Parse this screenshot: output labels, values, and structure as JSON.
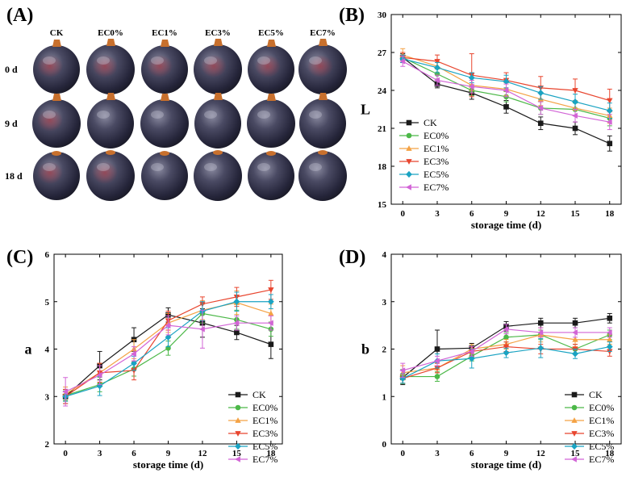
{
  "photo_panel": {
    "label": "(A)",
    "columns": [
      "CK",
      "EC0%",
      "EC1%",
      "EC3%",
      "EC5%",
      "EC7%"
    ],
    "rows": [
      "0 d",
      "9 d",
      "18 d"
    ]
  },
  "colors": {
    "CK": "#1a1a1a",
    "EC0%": "#4cb848",
    "EC1%": "#f4a244",
    "EC3%": "#e8452e",
    "EC5%": "#1aa3c2",
    "EC7%": "#d264d6"
  },
  "chart_data": [
    {
      "type": "line",
      "panel": "(B)",
      "xlabel": "storage time (d)",
      "ylabel": "L",
      "x": [
        0,
        3,
        6,
        9,
        12,
        15,
        18
      ],
      "xticks": [
        "0",
        "3",
        "6",
        "9",
        "12",
        "15",
        "18"
      ],
      "ylim": [
        15,
        30
      ],
      "yticks": [
        "15",
        "18",
        "21",
        "24",
        "27",
        "30"
      ],
      "legend_position": "lower-left",
      "series": [
        {
          "name": "CK",
          "values": [
            26.6,
            24.5,
            23.8,
            22.7,
            21.4,
            21.0,
            19.8
          ],
          "errors": [
            0.3,
            0.3,
            0.5,
            0.5,
            0.5,
            0.5,
            0.6
          ]
        },
        {
          "name": "EC0%",
          "values": [
            26.6,
            25.3,
            24.0,
            23.5,
            22.6,
            22.5,
            21.8
          ],
          "errors": [
            0.4,
            0.4,
            0.4,
            0.4,
            0.5,
            0.5,
            0.6
          ]
        },
        {
          "name": "EC1%",
          "values": [
            26.8,
            25.9,
            24.4,
            24.1,
            23.3,
            22.6,
            22.0
          ],
          "errors": [
            0.5,
            0.5,
            0.4,
            0.5,
            0.5,
            0.6,
            0.6
          ]
        },
        {
          "name": "EC3%",
          "values": [
            26.6,
            26.3,
            25.2,
            24.8,
            24.2,
            24.0,
            23.2
          ],
          "errors": [
            0.4,
            0.5,
            1.7,
            0.6,
            0.9,
            0.9,
            0.9
          ]
        },
        {
          "name": "EC5%",
          "values": [
            26.5,
            25.8,
            25.0,
            24.7,
            23.8,
            23.1,
            22.4
          ],
          "errors": [
            0.3,
            0.4,
            0.4,
            0.5,
            0.5,
            0.6,
            0.6
          ]
        },
        {
          "name": "EC7%",
          "values": [
            26.3,
            24.8,
            24.3,
            24.0,
            22.6,
            22.0,
            21.5
          ],
          "errors": [
            0.4,
            0.4,
            0.5,
            0.5,
            0.5,
            0.5,
            0.6
          ]
        }
      ]
    },
    {
      "type": "line",
      "panel": "(C)",
      "xlabel": "storage time (d)",
      "ylabel": "a",
      "x": [
        0,
        3,
        6,
        9,
        12,
        15,
        18
      ],
      "xticks": [
        "0",
        "3",
        "6",
        "9",
        "12",
        "15",
        "18"
      ],
      "ylim": [
        2,
        6
      ],
      "yticks": [
        "2",
        "3",
        "4",
        "5",
        "6"
      ],
      "legend_position": "lower-right",
      "series": [
        {
          "name": "CK",
          "values": [
            3.0,
            3.65,
            4.2,
            4.72,
            4.55,
            4.35,
            4.1
          ],
          "errors": [
            0.15,
            0.3,
            0.25,
            0.15,
            0.3,
            0.15,
            0.3
          ]
        },
        {
          "name": "EC0%",
          "values": [
            3.02,
            3.25,
            3.58,
            4.02,
            4.75,
            4.62,
            4.42
          ],
          "errors": [
            0.1,
            0.15,
            0.15,
            0.15,
            0.2,
            0.2,
            0.15
          ]
        },
        {
          "name": "EC1%",
          "values": [
            3.05,
            3.5,
            4.0,
            4.55,
            4.82,
            4.98,
            4.75
          ],
          "errors": [
            0.15,
            0.2,
            0.2,
            0.2,
            0.2,
            0.25,
            0.2
          ]
        },
        {
          "name": "EC3%",
          "values": [
            3.0,
            3.5,
            3.55,
            4.6,
            4.95,
            5.1,
            5.25
          ],
          "errors": [
            0.15,
            0.2,
            0.2,
            0.2,
            0.15,
            0.2,
            0.2
          ]
        },
        {
          "name": "EC5%",
          "values": [
            3.0,
            3.22,
            3.7,
            4.25,
            4.8,
            5.0,
            5.0
          ],
          "errors": [
            0.1,
            0.2,
            0.15,
            0.2,
            0.2,
            0.2,
            0.15
          ]
        },
        {
          "name": "EC7%",
          "values": [
            3.1,
            3.45,
            3.9,
            4.5,
            4.42,
            4.55,
            4.55
          ],
          "errors": [
            0.3,
            0.2,
            0.15,
            0.2,
            0.4,
            0.15,
            0.15
          ]
        }
      ]
    },
    {
      "type": "line",
      "panel": "(D)",
      "xlabel": "storage time (d)",
      "ylabel": "b",
      "x": [
        0,
        3,
        6,
        9,
        12,
        15,
        18
      ],
      "xticks": [
        "0",
        "3",
        "6",
        "9",
        "12",
        "15",
        "18"
      ],
      "ylim": [
        0,
        4
      ],
      "yticks": [
        "0",
        "1",
        "2",
        "3",
        "4"
      ],
      "legend_position": "lower-right",
      "series": [
        {
          "name": "CK",
          "values": [
            1.4,
            2.0,
            2.02,
            2.48,
            2.55,
            2.55,
            2.65
          ],
          "errors": [
            0.15,
            0.4,
            0.1,
            0.1,
            0.1,
            0.1,
            0.1
          ]
        },
        {
          "name": "EC0%",
          "values": [
            1.42,
            1.42,
            1.85,
            2.25,
            2.3,
            2.0,
            2.3
          ],
          "errors": [
            0.15,
            0.1,
            0.1,
            0.1,
            0.1,
            0.1,
            0.1
          ]
        },
        {
          "name": "EC1%",
          "values": [
            1.5,
            1.6,
            2.0,
            2.1,
            2.3,
            2.2,
            2.2
          ],
          "errors": [
            0.15,
            0.1,
            0.1,
            0.1,
            0.15,
            0.15,
            0.1
          ]
        },
        {
          "name": "EC3%",
          "values": [
            1.38,
            1.6,
            1.95,
            2.05,
            2.0,
            2.0,
            1.95
          ],
          "errors": [
            0.1,
            0.1,
            0.1,
            0.1,
            0.1,
            0.1,
            0.1
          ]
        },
        {
          "name": "EC5%",
          "values": [
            1.38,
            1.75,
            1.8,
            1.92,
            2.02,
            1.9,
            2.05
          ],
          "errors": [
            0.1,
            0.15,
            0.2,
            0.1,
            0.2,
            0.1,
            0.1
          ]
        },
        {
          "name": "EC7%",
          "values": [
            1.55,
            1.75,
            1.95,
            2.42,
            2.35,
            2.35,
            2.35
          ],
          "errors": [
            0.15,
            0.1,
            0.1,
            0.1,
            0.1,
            0.1,
            0.1
          ]
        }
      ]
    }
  ]
}
